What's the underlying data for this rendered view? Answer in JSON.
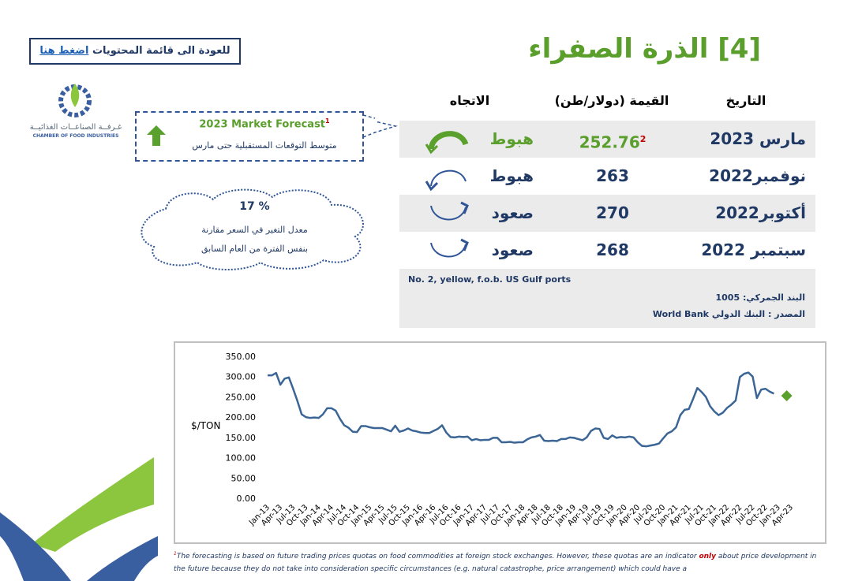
{
  "header": {
    "title": "[4] الذرة الصفراء",
    "back_text": "للعودة الى قائمة المحتويات",
    "back_link": "اضغط هنا"
  },
  "logo": {
    "arabic": "غـرفــة الصناعــات الغذائيــة",
    "english": "CHAMBER OF FOOD INDUSTRIES"
  },
  "forecast": {
    "title": "2023 Market Forecast",
    "mark": "1",
    "subtitle": "متوسط التوقعات المستقبلية حتى مارس"
  },
  "change": {
    "value": "17 %",
    "line1": "معدل التغير في السعر مقارنة",
    "line2": "بنفس الفترة من العام السابق"
  },
  "table": {
    "headers": [
      "التاريخ",
      "القيمة (دولار/طن)",
      "الاتجاه"
    ],
    "rows": [
      [
        "مارس  2023",
        "252.76",
        "هبوط"
      ],
      [
        "نوفمبر2022",
        "263",
        "هبوط"
      ],
      [
        "أكتوبر2022",
        "270",
        "صعود"
      ],
      [
        "سبتمبر 2022",
        "268",
        "صعود"
      ]
    ],
    "value_mark": "2"
  },
  "notes": {
    "grade": "No. 2, yellow, f.o.b. US Gulf ports",
    "hs_code": "البند الجمركي: 1005",
    "source": "المصدر : البنك الدولي",
    "source_en": "World Bank"
  },
  "footnote": {
    "mark": "1",
    "before": "The forecasting is based on future trading prices quotas on food commodities at foreign stock exchanges. However, these quotas are an indicator",
    "emphasis": "only",
    "after": "about price development in the future because they do not  take into  consideration specific circumstances  (e.g. natural catastrophe, price arrangement)  which could have a"
  },
  "chart_data": {
    "type": "line",
    "y_label": "$/TON",
    "categories": [
      "Jan-13",
      null,
      null,
      "Apr-13",
      null,
      null,
      "Jul-13",
      null,
      null,
      "Oct-13",
      null,
      null,
      "Jan-14",
      null,
      null,
      "Apr-14",
      null,
      null,
      "Jul-14",
      null,
      null,
      "Oct-14",
      null,
      null,
      "Jan-15",
      null,
      null,
      "Apr-15",
      null,
      null,
      "Jul-15",
      null,
      null,
      "Oct-15",
      null,
      null,
      "Jan-16",
      null,
      null,
      "Apr-16",
      null,
      null,
      "Jul-16",
      null,
      null,
      "Oct-16",
      null,
      null,
      "Jan-17",
      null,
      null,
      "Apr-17",
      null,
      null,
      "Jul-17",
      null,
      null,
      "Oct-17",
      null,
      null,
      "Jan-18",
      null,
      null,
      "Apr-18",
      null,
      null,
      "Jul-18",
      null,
      null,
      "Oct-18",
      null,
      null,
      "Jan-19",
      null,
      null,
      "Apr-19",
      null,
      null,
      "Jul-19",
      null,
      null,
      "Oct-19",
      null,
      null,
      "Jan-20",
      null,
      null,
      "Apr-20",
      null,
      null,
      "Jul-20",
      null,
      null,
      "Oct-20",
      null,
      null,
      "Jan-21",
      null,
      null,
      "Apr-21",
      null,
      null,
      "Jul-21",
      null,
      null,
      "Oct-21",
      null,
      null,
      "Jan-22",
      null,
      null,
      "Apr-22",
      null,
      null,
      "Jul-22",
      null,
      null,
      "Oct-22",
      null,
      null,
      "Jan-23",
      null,
      null,
      "Apr-23"
    ],
    "series": [
      {
        "color": "#3b6595",
        "values": [
          303,
          303,
          309,
          280,
          295,
          298,
          270,
          240,
          207,
          200,
          198,
          199,
          198,
          207,
          222,
          222,
          216,
          196,
          180,
          174,
          164,
          163,
          178,
          178,
          175,
          173,
          173,
          173,
          169,
          165,
          179,
          164,
          167,
          172,
          167,
          165,
          162,
          161,
          161,
          166,
          171,
          180,
          162,
          151,
          150,
          152,
          151,
          152,
          143,
          146,
          143,
          144,
          144,
          149,
          149,
          138,
          138,
          139,
          137,
          138,
          138,
          145,
          150,
          152,
          156,
          142,
          141,
          142,
          141,
          146,
          146,
          150,
          149,
          146,
          143,
          150,
          166,
          172,
          171,
          149,
          146,
          155,
          149,
          151,
          150,
          152,
          150,
          138,
          129,
          128,
          130,
          132,
          135,
          148,
          160,
          165,
          175,
          205,
          218,
          220,
          245,
          272,
          262,
          250,
          227,
          214,
          205,
          211,
          223,
          231,
          241,
          299,
          307,
          310,
          300,
          247,
          268,
          270,
          263,
          258,
          null,
          null,
          null,
          null
        ]
      },
      {
        "color": "#5aa02c",
        "marker": "diamond",
        "values": [
          null,
          null,
          null,
          null,
          null,
          null,
          null,
          null,
          null,
          null,
          null,
          null,
          null,
          null,
          null,
          null,
          null,
          null,
          null,
          null,
          null,
          null,
          null,
          null,
          null,
          null,
          null,
          null,
          null,
          null,
          null,
          null,
          null,
          null,
          null,
          null,
          null,
          null,
          null,
          null,
          null,
          null,
          null,
          null,
          null,
          null,
          null,
          null,
          null,
          null,
          null,
          null,
          null,
          null,
          null,
          null,
          null,
          null,
          null,
          null,
          null,
          null,
          null,
          null,
          null,
          null,
          null,
          null,
          null,
          null,
          null,
          null,
          null,
          null,
          null,
          null,
          null,
          null,
          null,
          null,
          null,
          null,
          null,
          null,
          null,
          null,
          null,
          null,
          null,
          null,
          null,
          null,
          null,
          null,
          null,
          null,
          null,
          null,
          null,
          null,
          null,
          null,
          null,
          null,
          null,
          null,
          null,
          null,
          null,
          null,
          null,
          null,
          null,
          null,
          null,
          null,
          null,
          null,
          null,
          null,
          null,
          null,
          252.76,
          null
        ]
      }
    ],
    "ylim": [
      0,
      350
    ],
    "yticks": [
      {
        "value": 0,
        "label": "0.00"
      },
      {
        "value": 50,
        "label": "50.00"
      },
      {
        "value": 100,
        "label": "100.00"
      },
      {
        "value": 150,
        "label": "150.00"
      },
      {
        "value": 200,
        "label": "200.00"
      },
      {
        "value": 250,
        "label": "250.00"
      },
      {
        "value": 300,
        "label": "300.00"
      },
      {
        "value": 350,
        "label": "350.00"
      }
    ],
    "grid": false
  }
}
